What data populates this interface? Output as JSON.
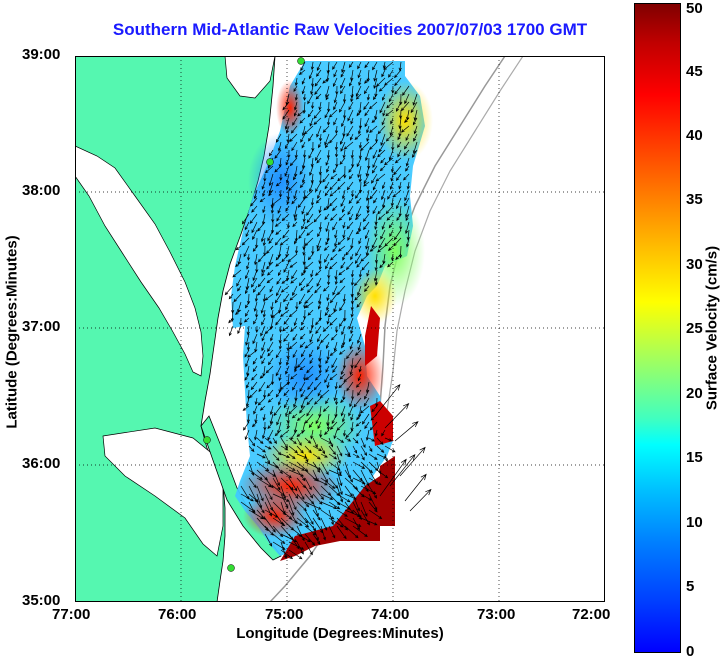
{
  "title": "Southern Mid-Atlantic Raw Velocities 2007/07/03 1700 GMT",
  "xlabel": "Longitude (Degrees:Minutes)",
  "ylabel": "Latitude (Degrees:Minutes)",
  "x_ticks": [
    "77:00",
    "76:00",
    "75:00",
    "74:00",
    "73:00",
    "72:00"
  ],
  "y_ticks": [
    "39:00",
    "38:00",
    "37:00",
    "36:00",
    "35:00"
  ],
  "colorbar": {
    "label": "Surface Velocity (cm/s)",
    "ticks": [
      "0",
      "5",
      "10",
      "15",
      "20",
      "25",
      "30",
      "35",
      "40",
      "45",
      "50"
    ],
    "range": [
      0,
      50
    ]
  },
  "colors": {
    "land": "#55f7b0",
    "coastline": "#000000",
    "grid": "#000000",
    "bathymetry": "#999999",
    "vector": "#000000",
    "station_marker": "#33dd33"
  }
}
